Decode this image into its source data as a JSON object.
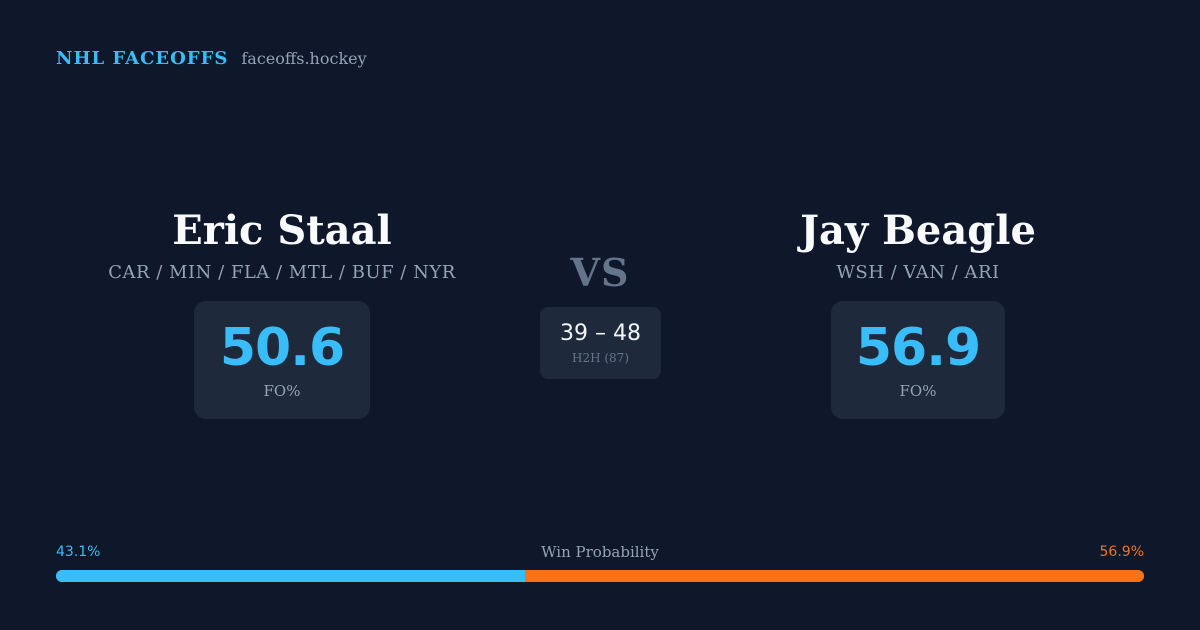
{
  "brand": {
    "name": "NHL FACEOFFS",
    "url": "faceoffs.hockey"
  },
  "players": {
    "left": {
      "name": "Eric Staal",
      "teams": "CAR / MIN / FLA / MTL / BUF / NYR",
      "fo_value": "50.6",
      "fo_label": "FO%"
    },
    "right": {
      "name": "Jay Beagle",
      "teams": "WSH / VAN / ARI",
      "fo_value": "56.9",
      "fo_label": "FO%"
    }
  },
  "vs_label": "VS",
  "h2h": {
    "score": "39 – 48",
    "label": "H2H (87)"
  },
  "win_probability": {
    "title": "Win Probability",
    "left_label": "43.1%",
    "right_label": "56.9%",
    "left_fraction": 0.431
  },
  "colors": {
    "background": "#0f172a",
    "accent_left": "#38bdf8",
    "accent_right": "#f97316",
    "card": "#1e293b"
  }
}
